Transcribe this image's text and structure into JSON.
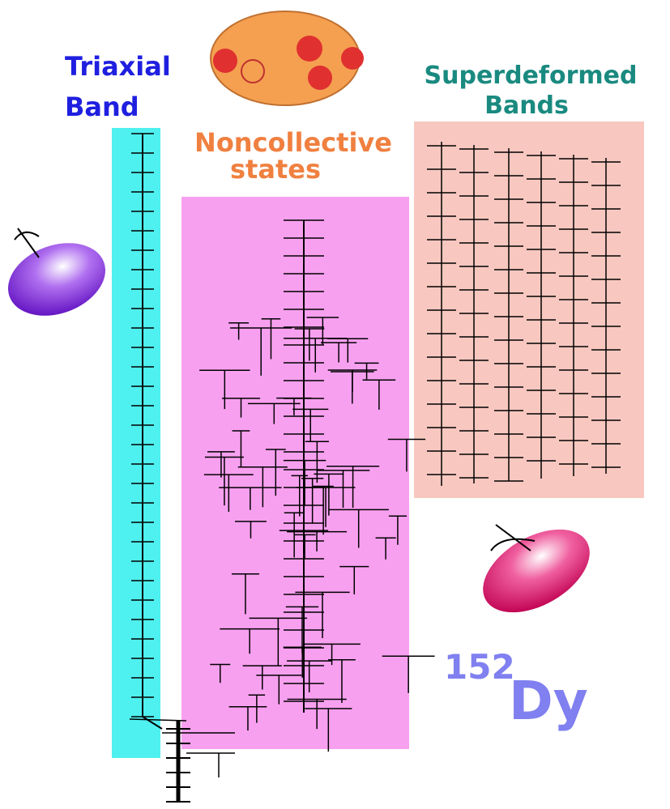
{
  "regions": [
    {
      "title_lines": [
        "Triaxial",
        "Band"
      ]
    },
    {
      "title_lines": [
        "Noncollective",
        "states"
      ]
    },
    {
      "title_lines": [
        "Superdeformed",
        "Bands"
      ]
    }
  ],
  "nucleus": {
    "mass_number": "152",
    "symbol": "Dy"
  }
}
